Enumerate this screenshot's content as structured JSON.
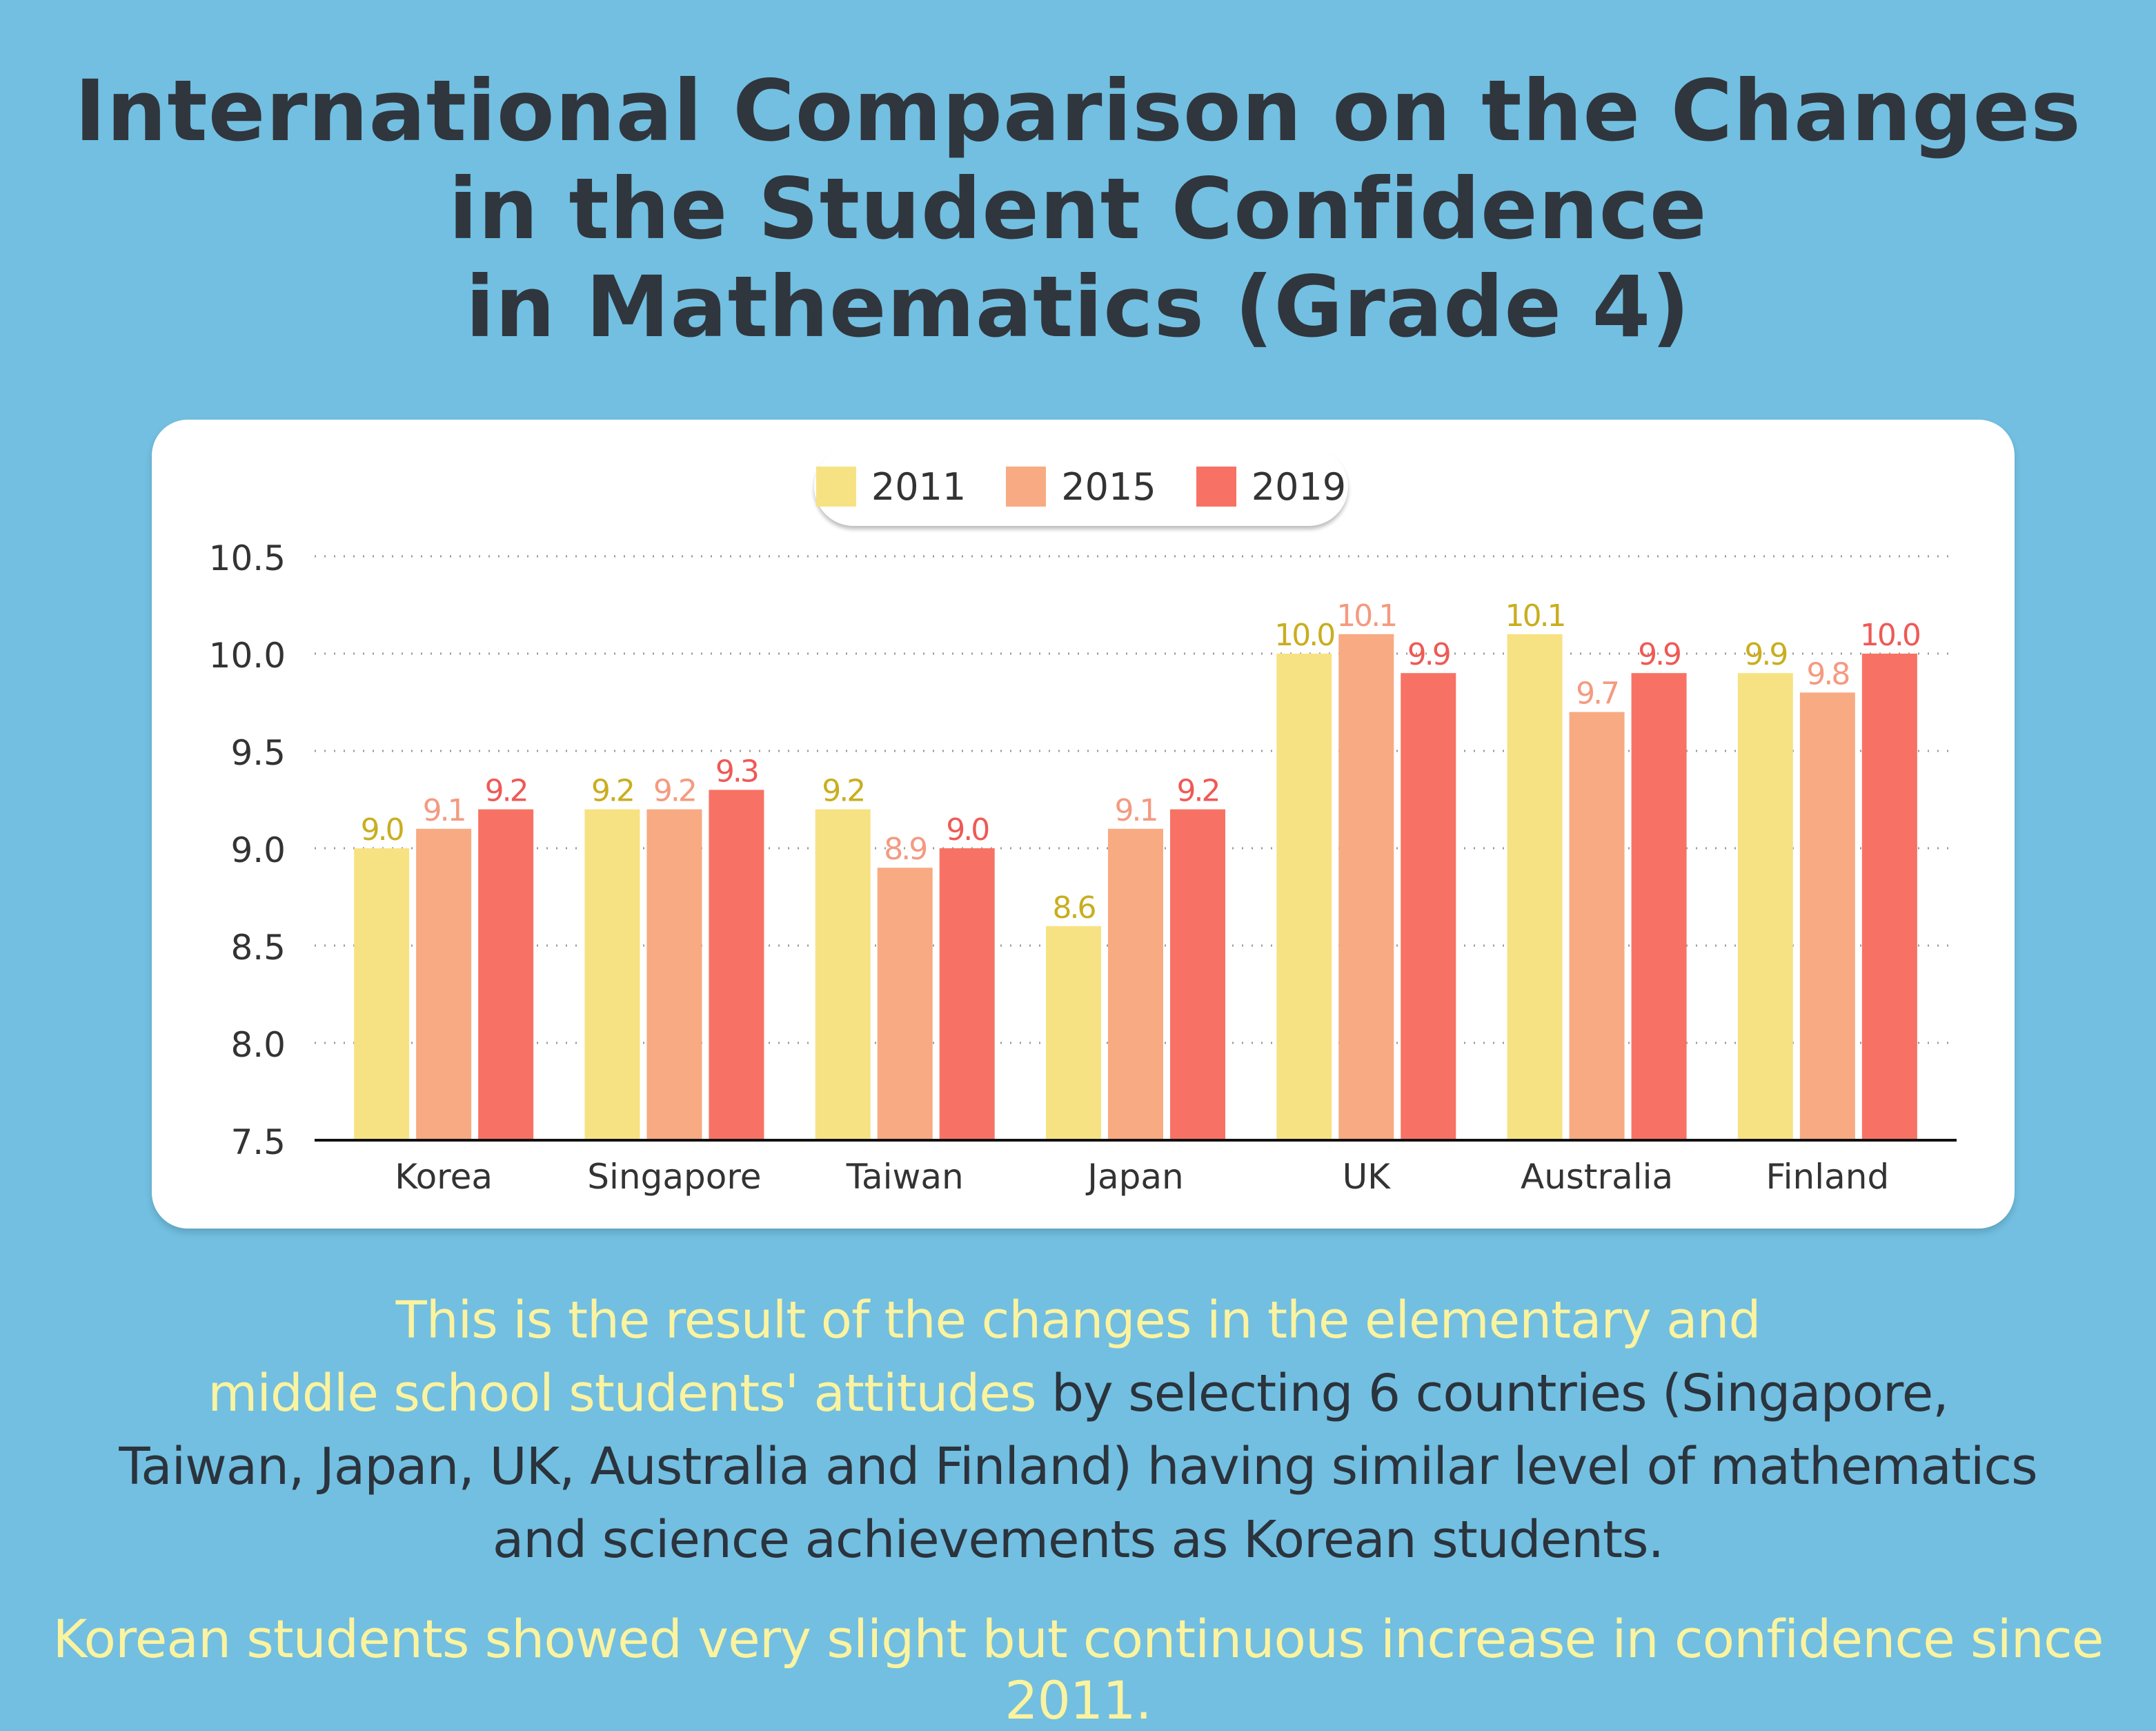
{
  "title": {
    "lines": [
      "International Comparison on the Changes",
      "in the Student Confidence",
      "in Mathematics (Grade 4)"
    ]
  },
  "colors": {
    "background": "#72bfe1",
    "series": [
      "#f7e283",
      "#f8aa82",
      "#f77264"
    ],
    "labels": [
      "#c9ae1f",
      "#f49a80",
      "#ee5a56"
    ]
  },
  "chart_data": {
    "type": "bar",
    "title": "International Comparison on the Changes in the Student Confidence in Mathematics (Grade 4)",
    "categories": [
      "Korea",
      "Singapore",
      "Taiwan",
      "Japan",
      "UK",
      "Australia",
      "Finland"
    ],
    "series": [
      {
        "name": "2011",
        "values": [
          9.0,
          9.2,
          9.2,
          8.6,
          10.0,
          10.1,
          9.9
        ],
        "labels": [
          "9.0",
          "9.2",
          "9.2",
          "8.6",
          "10.0",
          "10.1",
          "9.9"
        ]
      },
      {
        "name": "2015",
        "values": [
          9.1,
          9.2,
          8.9,
          9.1,
          10.1,
          9.7,
          9.8
        ],
        "labels": [
          "9.1",
          "9.2",
          "8.9",
          "9.1",
          "10.1",
          "9.7",
          "9.8"
        ]
      },
      {
        "name": "2019",
        "values": [
          9.2,
          9.3,
          9.0,
          9.2,
          9.9,
          9.9,
          10.0
        ],
        "labels": [
          "9.2",
          "9.3",
          "9.0",
          "9.2",
          "9.9",
          "9.9",
          "10.0"
        ]
      }
    ],
    "ylim": [
      7.5,
      10.5
    ],
    "yticks": [
      "7.5",
      "8.0",
      "8.5",
      "9.0",
      "9.5",
      "10.0",
      "10.5"
    ],
    "grid": true,
    "legend": "top-center",
    "xlabel": "",
    "ylabel": ""
  },
  "description": {
    "highlight_1": "This is the result of the changes in the elementary and",
    "highlight_2": "middle school students' attitudes",
    "text_1": " by selecting 6 countries (Singapore,",
    "text_2": "Taiwan, Japan, UK, Australia and Finland) having similar level of mathematics",
    "text_3": "and science achievements as Korean students."
  },
  "conclusion": "Korean students showed very slight but continuous increase in confidence since 2011."
}
